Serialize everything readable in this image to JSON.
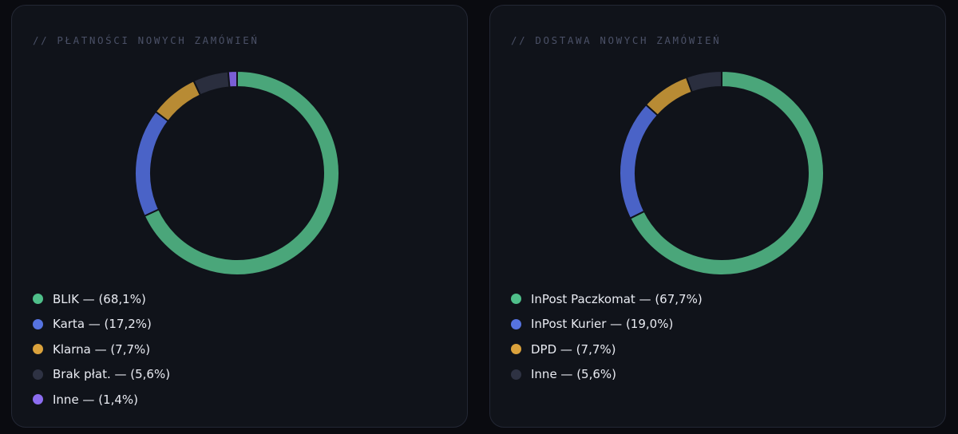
{
  "chart_data": [
    {
      "type": "pie",
      "variant": "donut",
      "title": "// PŁATNOŚCI NOWYCH ZAMÓWIEŃ",
      "legend_position": "bottom-left",
      "slices": [
        {
          "name": "BLIK",
          "label": "BLIK — (68,1%)",
          "value": 68.1,
          "color": "#4aa67a",
          "legend_color": "#4fbf8a"
        },
        {
          "name": "Karta",
          "label": "Karta — (17,2%)",
          "value": 17.2,
          "color": "#4a63c7",
          "legend_color": "#5673e0"
        },
        {
          "name": "Klarna",
          "label": "Klarna — (7,7%)",
          "value": 7.7,
          "color": "#b88b34",
          "legend_color": "#dba23c"
        },
        {
          "name": "Brak płat.",
          "label": "Brak płat. — (5,6%)",
          "value": 5.6,
          "color": "#2a2e3e",
          "legend_color": "#2e3243"
        },
        {
          "name": "Inne",
          "label": "Inne — (1,4%)",
          "value": 1.4,
          "color": "#7a5fd6",
          "legend_color": "#8c6df0"
        }
      ]
    },
    {
      "type": "pie",
      "variant": "donut",
      "title": "// DOSTAWA NOWYCH ZAMÓWIEŃ",
      "legend_position": "bottom-left",
      "slices": [
        {
          "name": "InPost Paczkomat",
          "label": "InPost Paczkomat — (67,7%)",
          "value": 67.7,
          "color": "#4aa67a",
          "legend_color": "#4fbf8a"
        },
        {
          "name": "InPost Kurier",
          "label": "InPost Kurier — (19,0%)",
          "value": 19.0,
          "color": "#4a63c7",
          "legend_color": "#5673e0"
        },
        {
          "name": "DPD",
          "label": "DPD — (7,7%)",
          "value": 7.7,
          "color": "#b88b34",
          "legend_color": "#dba23c"
        },
        {
          "name": "Inne",
          "label": "Inne — (5,6%)",
          "value": 5.6,
          "color": "#2a2e3e",
          "legend_color": "#2e3243"
        }
      ]
    }
  ]
}
